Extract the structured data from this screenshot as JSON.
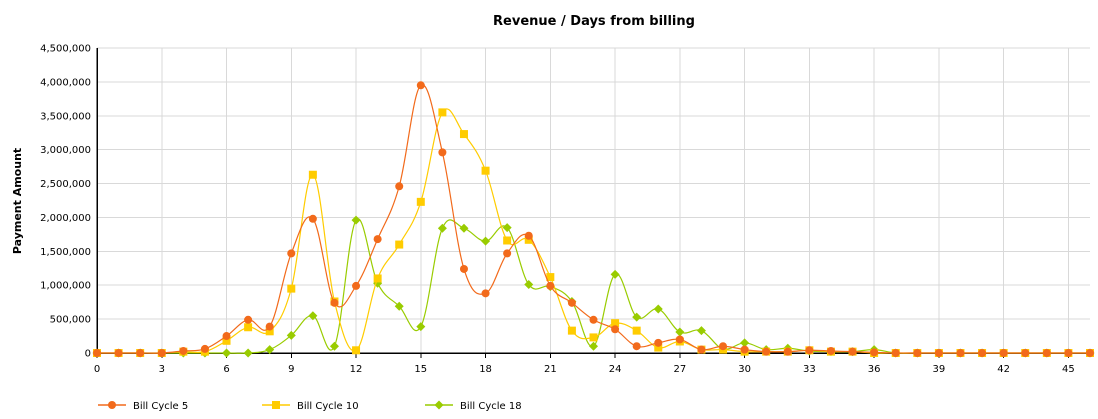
{
  "chart_data": {
    "type": "line",
    "title": "Revenue / Days from billing",
    "xlabel": "",
    "ylabel": "Payment Amount",
    "xlim": [
      0,
      46
    ],
    "ylim": [
      0,
      4500000
    ],
    "x_ticks": [
      0,
      3,
      6,
      9,
      12,
      15,
      18,
      21,
      24,
      27,
      30,
      33,
      36,
      39,
      42,
      45
    ],
    "y_ticks": [
      0,
      500000,
      1000000,
      1500000,
      2000000,
      2500000,
      3000000,
      3500000,
      4000000,
      4500000
    ],
    "y_tick_labels": [
      "0",
      "500,000",
      "1,000,000",
      "1,500,000",
      "2,000,000",
      "2,500,000",
      "3,000,000",
      "3,500,000",
      "4,000,000",
      "4,500,000"
    ],
    "x_tick_labels": [
      "0",
      "3",
      "6",
      "9",
      "12",
      "15",
      "18",
      "21",
      "24",
      "27",
      "30",
      "33",
      "36",
      "39",
      "42",
      "45"
    ],
    "grid": true,
    "legend_position": "bottom-left",
    "x": [
      0,
      1,
      2,
      3,
      4,
      5,
      6,
      7,
      8,
      9,
      10,
      11,
      12,
      13,
      14,
      15,
      16,
      17,
      18,
      19,
      20,
      21,
      22,
      23,
      24,
      25,
      26,
      27,
      28,
      29,
      30,
      31,
      32,
      33,
      34,
      35,
      36,
      37,
      38,
      39,
      40,
      41,
      42,
      43,
      44,
      45,
      46
    ],
    "series": [
      {
        "name": "Bill Cycle 5",
        "color": "#f26a1b",
        "marker": "circle",
        "values": [
          0,
          0,
          0,
          0,
          30000,
          60000,
          250000,
          490000,
          390000,
          1470000,
          1980000,
          740000,
          990000,
          1680000,
          2460000,
          3950000,
          2960000,
          1240000,
          880000,
          1470000,
          1730000,
          990000,
          740000,
          490000,
          350000,
          100000,
          150000,
          200000,
          50000,
          100000,
          50000,
          20000,
          20000,
          40000,
          30000,
          20000,
          10000,
          0,
          0,
          0,
          0,
          0,
          0,
          0,
          0,
          0,
          0
        ]
      },
      {
        "name": "Bill Cycle 10",
        "color": "#ffcc00",
        "marker": "square",
        "values": [
          0,
          0,
          0,
          0,
          20000,
          20000,
          180000,
          380000,
          320000,
          950000,
          2630000,
          760000,
          40000,
          1100000,
          1600000,
          2230000,
          3550000,
          3230000,
          2690000,
          1660000,
          1670000,
          1120000,
          330000,
          230000,
          440000,
          330000,
          80000,
          170000,
          50000,
          50000,
          20000,
          20000,
          20000,
          40000,
          20000,
          20000,
          0,
          0,
          0,
          0,
          0,
          0,
          0,
          0,
          0,
          0,
          0
        ]
      },
      {
        "name": "Bill Cycle 18",
        "color": "#99cc00",
        "marker": "diamond",
        "values": [
          0,
          0,
          0,
          0,
          0,
          0,
          0,
          0,
          50000,
          260000,
          550000,
          100000,
          1960000,
          1030000,
          690000,
          390000,
          1840000,
          1840000,
          1650000,
          1850000,
          1010000,
          980000,
          760000,
          100000,
          1160000,
          530000,
          650000,
          310000,
          330000,
          60000,
          150000,
          50000,
          70000,
          30000,
          20000,
          20000,
          50000,
          0,
          0,
          0,
          0,
          0,
          0,
          0,
          0,
          0,
          0
        ]
      }
    ]
  }
}
